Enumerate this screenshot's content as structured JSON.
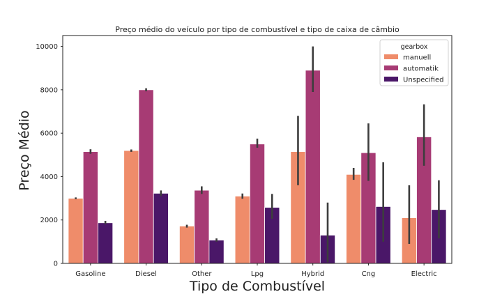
{
  "chart_data": {
    "type": "bar",
    "title": "Preço médio do veículo por tipo de combustível e tipo de caixa de câmbio",
    "xlabel": "Tipo de Combustível",
    "ylabel": "Preço Médio",
    "ylim": [
      0,
      10500
    ],
    "yticks": [
      0,
      2000,
      4000,
      6000,
      8000,
      10000
    ],
    "categories": [
      "Gasoline",
      "Diesel",
      "Other",
      "Lpg",
      "Hybrid",
      "Cng",
      "Electric"
    ],
    "legend": {
      "title": "gearbox",
      "placement": "top-right"
    },
    "grid": false,
    "series": [
      {
        "name": "manuell",
        "color": "#ef8c6a",
        "values": [
          3000,
          5200,
          1720,
          3100,
          5150,
          4100,
          2100
        ],
        "error_low": [
          2960,
          5140,
          1650,
          2980,
          3600,
          3850,
          900
        ],
        "error_high": [
          3040,
          5250,
          1780,
          3220,
          6800,
          4400,
          3600
        ]
      },
      {
        "name": "automatik",
        "color": "#a73b74",
        "values": [
          5150,
          8000,
          3370,
          5500,
          8900,
          5100,
          5830
        ],
        "error_low": [
          5050,
          7930,
          3200,
          5330,
          7900,
          3800,
          4500
        ],
        "error_high": [
          5260,
          8070,
          3550,
          5750,
          10000,
          6450,
          7330
        ]
      },
      {
        "name": "Unspecified",
        "color": "#4a1768",
        "values": [
          1870,
          3230,
          1070,
          2580,
          1300,
          2620,
          2480
        ],
        "error_low": [
          1800,
          3100,
          1000,
          2050,
          50,
          1000,
          1150
        ],
        "error_high": [
          1960,
          3360,
          1150,
          3200,
          2800,
          4660,
          3830
        ]
      }
    ]
  }
}
